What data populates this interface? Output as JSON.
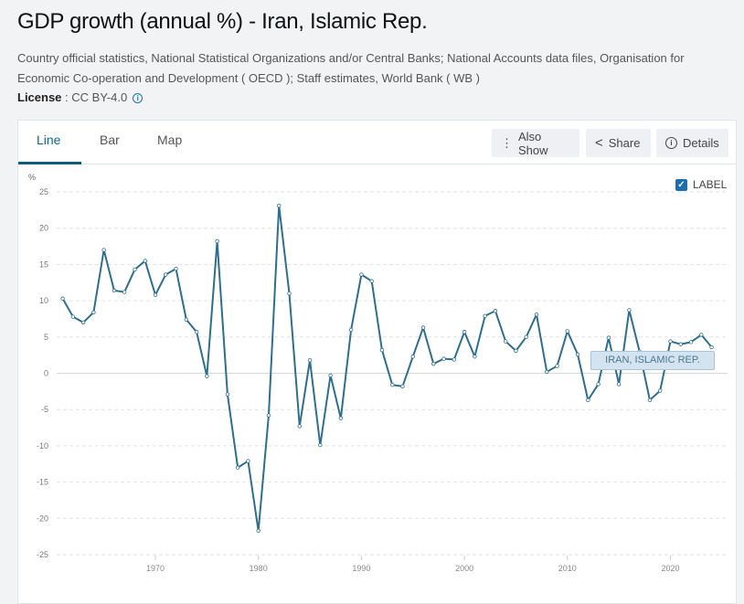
{
  "header": {
    "title": "GDP growth (annual %) - Iran, Islamic Rep.",
    "source": "Country official statistics, National Statistical Organizations and/or Central Banks; National Accounts data files, Organisation for Economic Co-operation and Development ( OECD ); Staff estimates, World Bank ( WB )",
    "license_label": "License",
    "license_value": ": CC BY-4.0"
  },
  "tabs": [
    {
      "label": "Line",
      "active": true
    },
    {
      "label": "Bar",
      "active": false
    },
    {
      "label": "Map",
      "active": false
    }
  ],
  "buttons": {
    "also_show": "Also Show",
    "share": "Share",
    "details": "Details"
  },
  "label_toggle": {
    "label": "LABEL",
    "checked": true
  },
  "colors": {
    "line": "#2e6e8e",
    "accent": "#0a6d91"
  },
  "chart_data": {
    "type": "line",
    "ylabel": "%",
    "ylim": [
      -25,
      25
    ],
    "yticks": [
      25,
      20,
      15,
      10,
      5,
      0,
      -5,
      -10,
      -15,
      -20,
      -25
    ],
    "xticks": [
      1970,
      1980,
      1990,
      2000,
      2010,
      2020
    ],
    "grid": true,
    "series": [
      {
        "name": "IRAN, ISLAMIC REP.",
        "x": [
          1961,
          1962,
          1963,
          1964,
          1965,
          1966,
          1967,
          1968,
          1969,
          1970,
          1971,
          1972,
          1973,
          1974,
          1975,
          1976,
          1977,
          1978,
          1979,
          1980,
          1981,
          1982,
          1983,
          1984,
          1985,
          1986,
          1987,
          1988,
          1989,
          1990,
          1991,
          1992,
          1993,
          1994,
          1995,
          1996,
          1997,
          1998,
          1999,
          2000,
          2001,
          2002,
          2003,
          2004,
          2005,
          2006,
          2007,
          2008,
          2009,
          2010,
          2011,
          2012,
          2013,
          2014,
          2015,
          2016,
          2017,
          2018,
          2019,
          2020,
          2021,
          2022,
          2023,
          2024
        ],
        "values": [
          10.3,
          7.8,
          7.0,
          8.4,
          17.0,
          11.4,
          11.2,
          14.3,
          15.5,
          10.8,
          13.6,
          14.4,
          7.4,
          5.7,
          -0.4,
          18.2,
          -2.9,
          -13.0,
          -12.1,
          -21.7,
          -5.8,
          23.1,
          11.0,
          -7.3,
          1.8,
          -9.9,
          -0.3,
          -6.2,
          6.0,
          13.6,
          12.7,
          3.2,
          -1.6,
          -1.8,
          2.3,
          6.3,
          1.3,
          2.0,
          1.9,
          5.7,
          2.3,
          7.9,
          8.6,
          4.4,
          3.1,
          5.0,
          8.1,
          0.2,
          1.0,
          5.8,
          2.6,
          -3.7,
          -1.5,
          4.9,
          -1.5,
          8.7,
          3.0,
          -3.7,
          -2.4,
          4.4,
          4.0,
          4.3,
          5.3,
          3.6
        ]
      }
    ]
  }
}
